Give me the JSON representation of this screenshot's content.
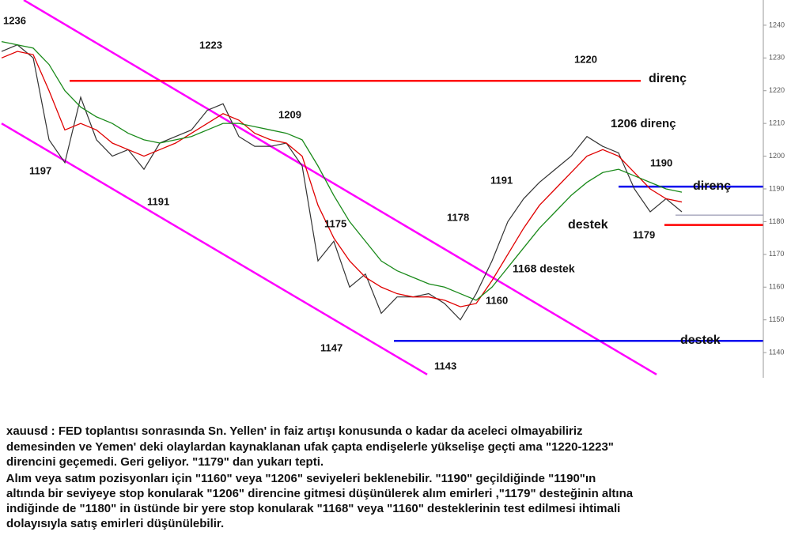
{
  "chart_data": {
    "type": "line",
    "ylim": [
      1132.3,
      1247.7
    ],
    "yticks": [
      1140,
      1150,
      1160,
      1170,
      1180,
      1190,
      1200,
      1210,
      1220,
      1230,
      1240
    ],
    "series": [
      {
        "color": "#333333",
        "values": [
          1232,
          1234,
          1230,
          1205,
          1198,
          1218,
          1205,
          1200,
          1202,
          1196,
          1204,
          1206,
          1208,
          1214,
          1216,
          1206,
          1203,
          1203,
          1204,
          1197,
          1168,
          1174,
          1160,
          1164,
          1152,
          1157,
          1157,
          1158,
          1155,
          1150,
          1158,
          1168,
          1180,
          1187,
          1192,
          1196,
          1200,
          1206,
          1203,
          1201,
          1190,
          1183,
          1187,
          1183
        ]
      },
      {
        "color": "#e00000",
        "values": [
          1230,
          1232,
          1231,
          1220,
          1208,
          1210,
          1208,
          1204,
          1202,
          1200,
          1202,
          1204,
          1207,
          1210,
          1213,
          1211,
          1207,
          1205,
          1204,
          1200,
          1185,
          1175,
          1168,
          1163,
          1160,
          1158,
          1157,
          1157,
          1156,
          1154,
          1155,
          1162,
          1170,
          1178,
          1185,
          1190,
          1195,
          1200,
          1202,
          1200,
          1195,
          1190,
          1187,
          1186
        ]
      },
      {
        "color": "#1a8a1a",
        "values": [
          1235,
          1234,
          1233,
          1228,
          1220,
          1215,
          1212,
          1210,
          1207,
          1205,
          1204,
          1205,
          1206,
          1208,
          1210,
          1210,
          1209,
          1208,
          1207,
          1205,
          1197,
          1188,
          1180,
          1174,
          1168,
          1165,
          1163,
          1161,
          1160,
          1158,
          1156,
          1160,
          1166,
          1172,
          1178,
          1183,
          1188,
          1192,
          1195,
          1196,
          1194,
          1192,
          1190,
          1189
        ]
      }
    ],
    "channel": [
      {
        "color": "#ff00ff",
        "from": [
          1.4,
          1247.7
        ],
        "to": [
          41.4,
          1133.3
        ]
      },
      {
        "color": "#ff00ff",
        "from": [
          0,
          1210
        ],
        "to": [
          26.9,
          1133.3
        ]
      }
    ],
    "levels": [
      {
        "value": 1223,
        "color": "#ff0000",
        "from": 4.3,
        "to": 40.4,
        "label": "direnç"
      },
      {
        "value": 1190.7,
        "color": "#0000ee",
        "from": 39,
        "label": "direnç"
      },
      {
        "value": 1179,
        "color": "#ff0000",
        "from": 41.9,
        "label": "destek"
      },
      {
        "value": 1143.6,
        "color": "#0000ee",
        "from": 24.8,
        "label": "destek"
      },
      {
        "value": 1182,
        "color": "#8080a0",
        "from": 42.6
      }
    ],
    "annotations": [
      "1236",
      "1223",
      "1220",
      "1209",
      "1206 direnç",
      "1197",
      "1191",
      "1191",
      "1190",
      "1178",
      "1175",
      "1179",
      "1168  destek",
      "1160",
      "1147",
      "1143"
    ]
  },
  "description": [
    "xauusd : FED toplantısı sonrasında Sn. Yellen' in faiz artışı konusunda o kadar da aceleci olmayabiliriz",
    "demesinden ve Yemen' deki olaylardan kaynaklanan ufak çapta endişelerle yükselişe geçti ama \"1220-1223\"",
    "direncini geçemedi. Geri geliyor. \"1179\" dan yukarı tepti.",
    " Alım veya satım pozisyonları için \"1160\" veya \"1206\" seviyeleri beklenebilir. \"1190\" geçildiğinde \"1190\"ın",
    "altında bir seviyeye stop konularak \"1206\" direncine gitmesi düşünülerek alım emirleri ,\"1179\" desteğinin altına",
    "indiğinde de \"1180\" in üstünde bir yere stop konularak \"1168\" veya \"1160\" desteklerinin test edilmesi ihtimali",
    "dolayısıyla satış emirleri düşünülebilir."
  ]
}
